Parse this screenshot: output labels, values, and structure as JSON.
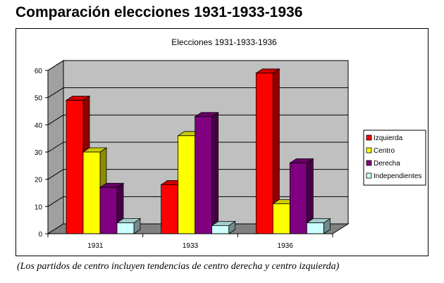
{
  "page": {
    "title": "Comparación elecciones 1931-1933-1936",
    "caption": "(Los partidos de centro incluyen tendencias de centro derecha y centro izquierda)"
  },
  "chart_data": {
    "type": "bar",
    "title": "Elecciones 1931-1933-1936",
    "xlabel": "",
    "ylabel": "",
    "categories": [
      "1931",
      "1933",
      "1936"
    ],
    "series": [
      {
        "name": "Izquierda",
        "values": [
          49,
          18,
          59
        ]
      },
      {
        "name": "Centro",
        "values": [
          30,
          36,
          11
        ]
      },
      {
        "name": "Derecha",
        "values": [
          17,
          43,
          26
        ]
      },
      {
        "name": "Independientes",
        "values": [
          4,
          3,
          4
        ]
      }
    ],
    "ylim": [
      0,
      60
    ],
    "yticks": [
      0,
      10,
      20,
      30,
      40,
      50,
      60
    ],
    "grid": true,
    "legend_position": "right",
    "colors": {
      "Izquierda": "#ff0000",
      "Centro": "#ffff00",
      "Derecha": "#800080",
      "Independientes": "#ccffff",
      "wall": "#c0c0c0",
      "floor": "#808080"
    }
  }
}
